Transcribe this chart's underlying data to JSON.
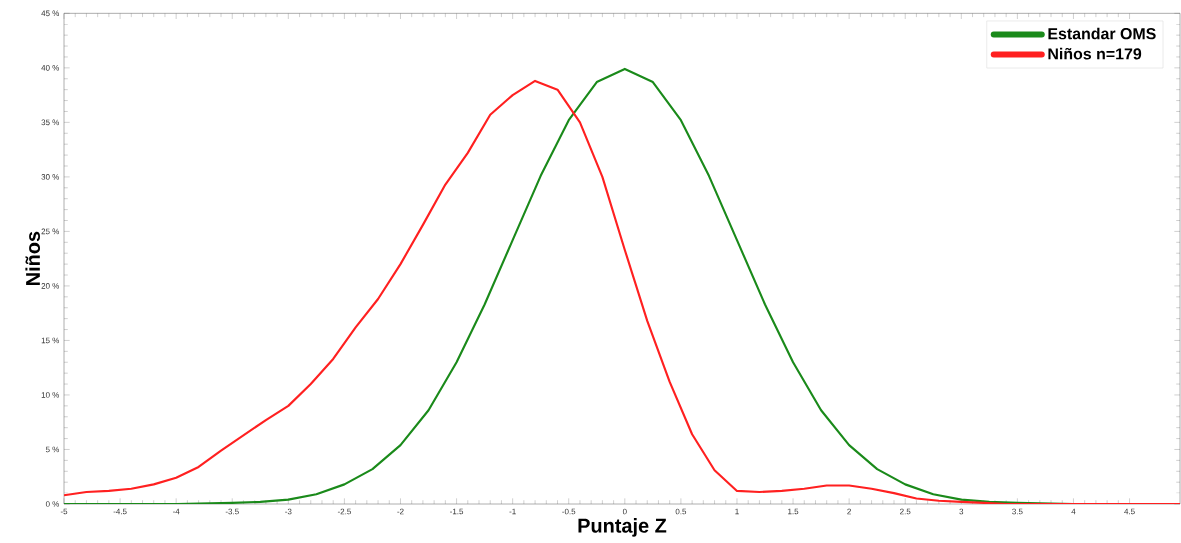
{
  "chart_data": {
    "type": "line",
    "xlabel": "Puntaje Z",
    "ylabel": "Niños",
    "xlim": [
      -5,
      4.95
    ],
    "ylim": [
      0,
      45
    ],
    "xticks": [
      -5,
      -4.5,
      -4,
      -3.5,
      -3,
      -2.5,
      -2,
      -1.5,
      -1,
      -0.5,
      0,
      0.5,
      1,
      1.5,
      2,
      2.5,
      3,
      3.5,
      4,
      4.5
    ],
    "yticks": [
      {
        "value": 0,
        "label": "0 %"
      },
      {
        "value": 5,
        "label": "5 %"
      },
      {
        "value": 10,
        "label": "10 %"
      },
      {
        "value": 15,
        "label": "15 %"
      },
      {
        "value": 20,
        "label": "20 %"
      },
      {
        "value": 25,
        "label": "25 %"
      },
      {
        "value": 30,
        "label": "30 %"
      },
      {
        "value": 35,
        "label": "35 %"
      },
      {
        "value": 40,
        "label": "40 %"
      },
      {
        "value": 45,
        "label": "45 %"
      }
    ],
    "grid": false,
    "legend": "top right",
    "marker": "none",
    "line_style": "solid",
    "series": [
      {
        "name": "Estandar OMS",
        "color": "#1a8a1a",
        "x": [
          -5,
          -4,
          -3.5,
          -3.25,
          -3,
          -2.75,
          -2.5,
          -2.25,
          -2,
          -1.75,
          -1.5,
          -1.25,
          -1,
          -0.75,
          -0.5,
          -0.25,
          0,
          0.25,
          0.5,
          0.75,
          1,
          1.25,
          1.5,
          1.75,
          2,
          2.25,
          2.5,
          2.75,
          3,
          3.25,
          3.5,
          4,
          4.95
        ],
        "values": [
          0,
          0,
          0.1,
          0.2,
          0.4,
          0.9,
          1.8,
          3.2,
          5.4,
          8.6,
          13.0,
          18.3,
          24.2,
          30.1,
          35.2,
          38.7,
          39.9,
          38.7,
          35.2,
          30.1,
          24.2,
          18.3,
          13.0,
          8.6,
          5.4,
          3.2,
          1.8,
          0.9,
          0.4,
          0.2,
          0.1,
          0,
          0
        ]
      },
      {
        "name": "Niños n=179",
        "color": "#ff2020",
        "x": [
          -5,
          -4.8,
          -4.6,
          -4.4,
          -4.2,
          -4,
          -3.8,
          -3.6,
          -3.4,
          -3.2,
          -3,
          -2.8,
          -2.6,
          -2.4,
          -2.2,
          -2,
          -1.8,
          -1.6,
          -1.4,
          -1.2,
          -1,
          -0.8,
          -0.6,
          -0.4,
          -0.2,
          0,
          0.2,
          0.4,
          0.6,
          0.8,
          1,
          1.2,
          1.4,
          1.6,
          1.8,
          2,
          2.2,
          2.4,
          2.6,
          2.8,
          3,
          3.2,
          3.4,
          4,
          4.95
        ],
        "values": [
          0.8,
          1.1,
          1.2,
          1.4,
          1.8,
          2.4,
          3.4,
          4.9,
          6.3,
          7.7,
          9.0,
          11.0,
          13.3,
          16.2,
          18.8,
          22.0,
          25.6,
          29.3,
          32.2,
          35.7,
          37.5,
          38.8,
          38.0,
          35.0,
          30.0,
          23.3,
          16.8,
          11.2,
          6.4,
          3.1,
          1.2,
          1.1,
          1.2,
          1.4,
          1.7,
          1.7,
          1.4,
          1.0,
          0.5,
          0.3,
          0.2,
          0.1,
          0,
          0,
          0
        ]
      }
    ]
  }
}
